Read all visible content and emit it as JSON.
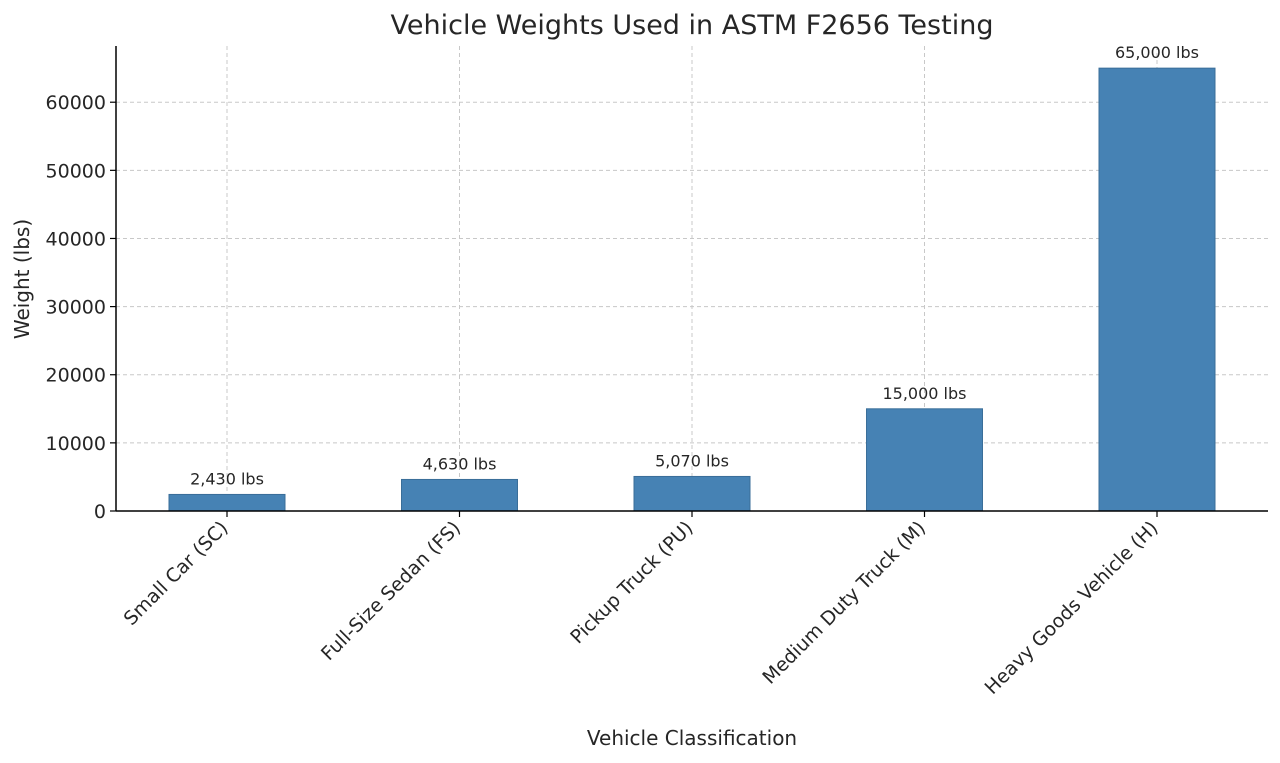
{
  "chart_data": {
    "type": "bar",
    "title": "Vehicle Weights Used in ASTM F2656 Testing",
    "xlabel": "Vehicle Classification",
    "ylabel": "Weight (lbs)",
    "categories": [
      "Small Car (SC)",
      "Full-Size Sedan (FS)",
      "Pickup Truck (PU)",
      "Medium Duty Truck (M)",
      "Heavy Goods Vehicle (H)"
    ],
    "values": [
      2430,
      4630,
      5070,
      15000,
      65000
    ],
    "data_labels": [
      "2,430 lbs",
      "4,630 lbs",
      "5,070 lbs",
      "15,000 lbs",
      "65,000 lbs"
    ],
    "ylim": [
      0,
      68250
    ],
    "yticks": [
      0,
      10000,
      20000,
      30000,
      40000,
      50000,
      60000
    ],
    "ytick_labels": [
      "0",
      "10000",
      "20000",
      "30000",
      "40000",
      "50000",
      "60000"
    ],
    "grid": true,
    "bar_color": "#4682b4",
    "bar_edge_color": "#3a6e99"
  }
}
